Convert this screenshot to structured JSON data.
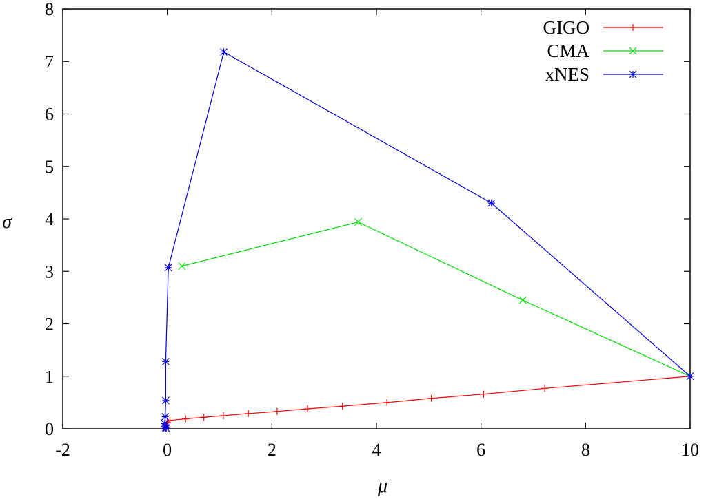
{
  "chart_data": {
    "type": "line",
    "title": "",
    "xlabel": "μ",
    "ylabel": "σ",
    "xlim": [
      -2,
      10
    ],
    "ylim": [
      0,
      8
    ],
    "xticks": [
      -2,
      0,
      2,
      4,
      6,
      8,
      10
    ],
    "yticks": [
      0,
      1,
      2,
      3,
      4,
      5,
      6,
      7,
      8
    ],
    "grid": false,
    "legend_position": "top-right",
    "series": [
      {
        "name": "GIGO",
        "color": "#ff0000",
        "marker": "plus",
        "points": [
          [
            10,
            1.0
          ],
          [
            7.22,
            0.77
          ],
          [
            6.05,
            0.66
          ],
          [
            5.05,
            0.58
          ],
          [
            4.2,
            0.5
          ],
          [
            3.35,
            0.43
          ],
          [
            2.68,
            0.38
          ],
          [
            2.1,
            0.33
          ],
          [
            1.55,
            0.29
          ],
          [
            1.07,
            0.25
          ],
          [
            0.7,
            0.22
          ],
          [
            0.35,
            0.19
          ],
          [
            0.05,
            0.16
          ],
          [
            0.0,
            0.12
          ],
          [
            -0.02,
            0.07
          ],
          [
            -0.03,
            0.03
          ],
          [
            -0.03,
            0.01
          ]
        ]
      },
      {
        "name": "CMA",
        "color": "#00dd00",
        "marker": "cross",
        "points": [
          [
            10,
            1.0
          ],
          [
            6.8,
            2.45
          ],
          [
            3.65,
            3.94
          ],
          [
            0.28,
            3.1
          ]
        ]
      },
      {
        "name": "xNES",
        "color": "#0000dd",
        "marker": "star",
        "points": [
          [
            10,
            1.0
          ],
          [
            6.2,
            4.3
          ],
          [
            1.08,
            7.18
          ],
          [
            0.02,
            3.07
          ],
          [
            -0.03,
            1.28
          ],
          [
            -0.03,
            0.54
          ],
          [
            -0.04,
            0.23
          ],
          [
            -0.05,
            0.1
          ],
          [
            -0.04,
            0.05
          ],
          [
            -0.03,
            0.02
          ],
          [
            -0.02,
            0.01
          ]
        ]
      }
    ]
  }
}
